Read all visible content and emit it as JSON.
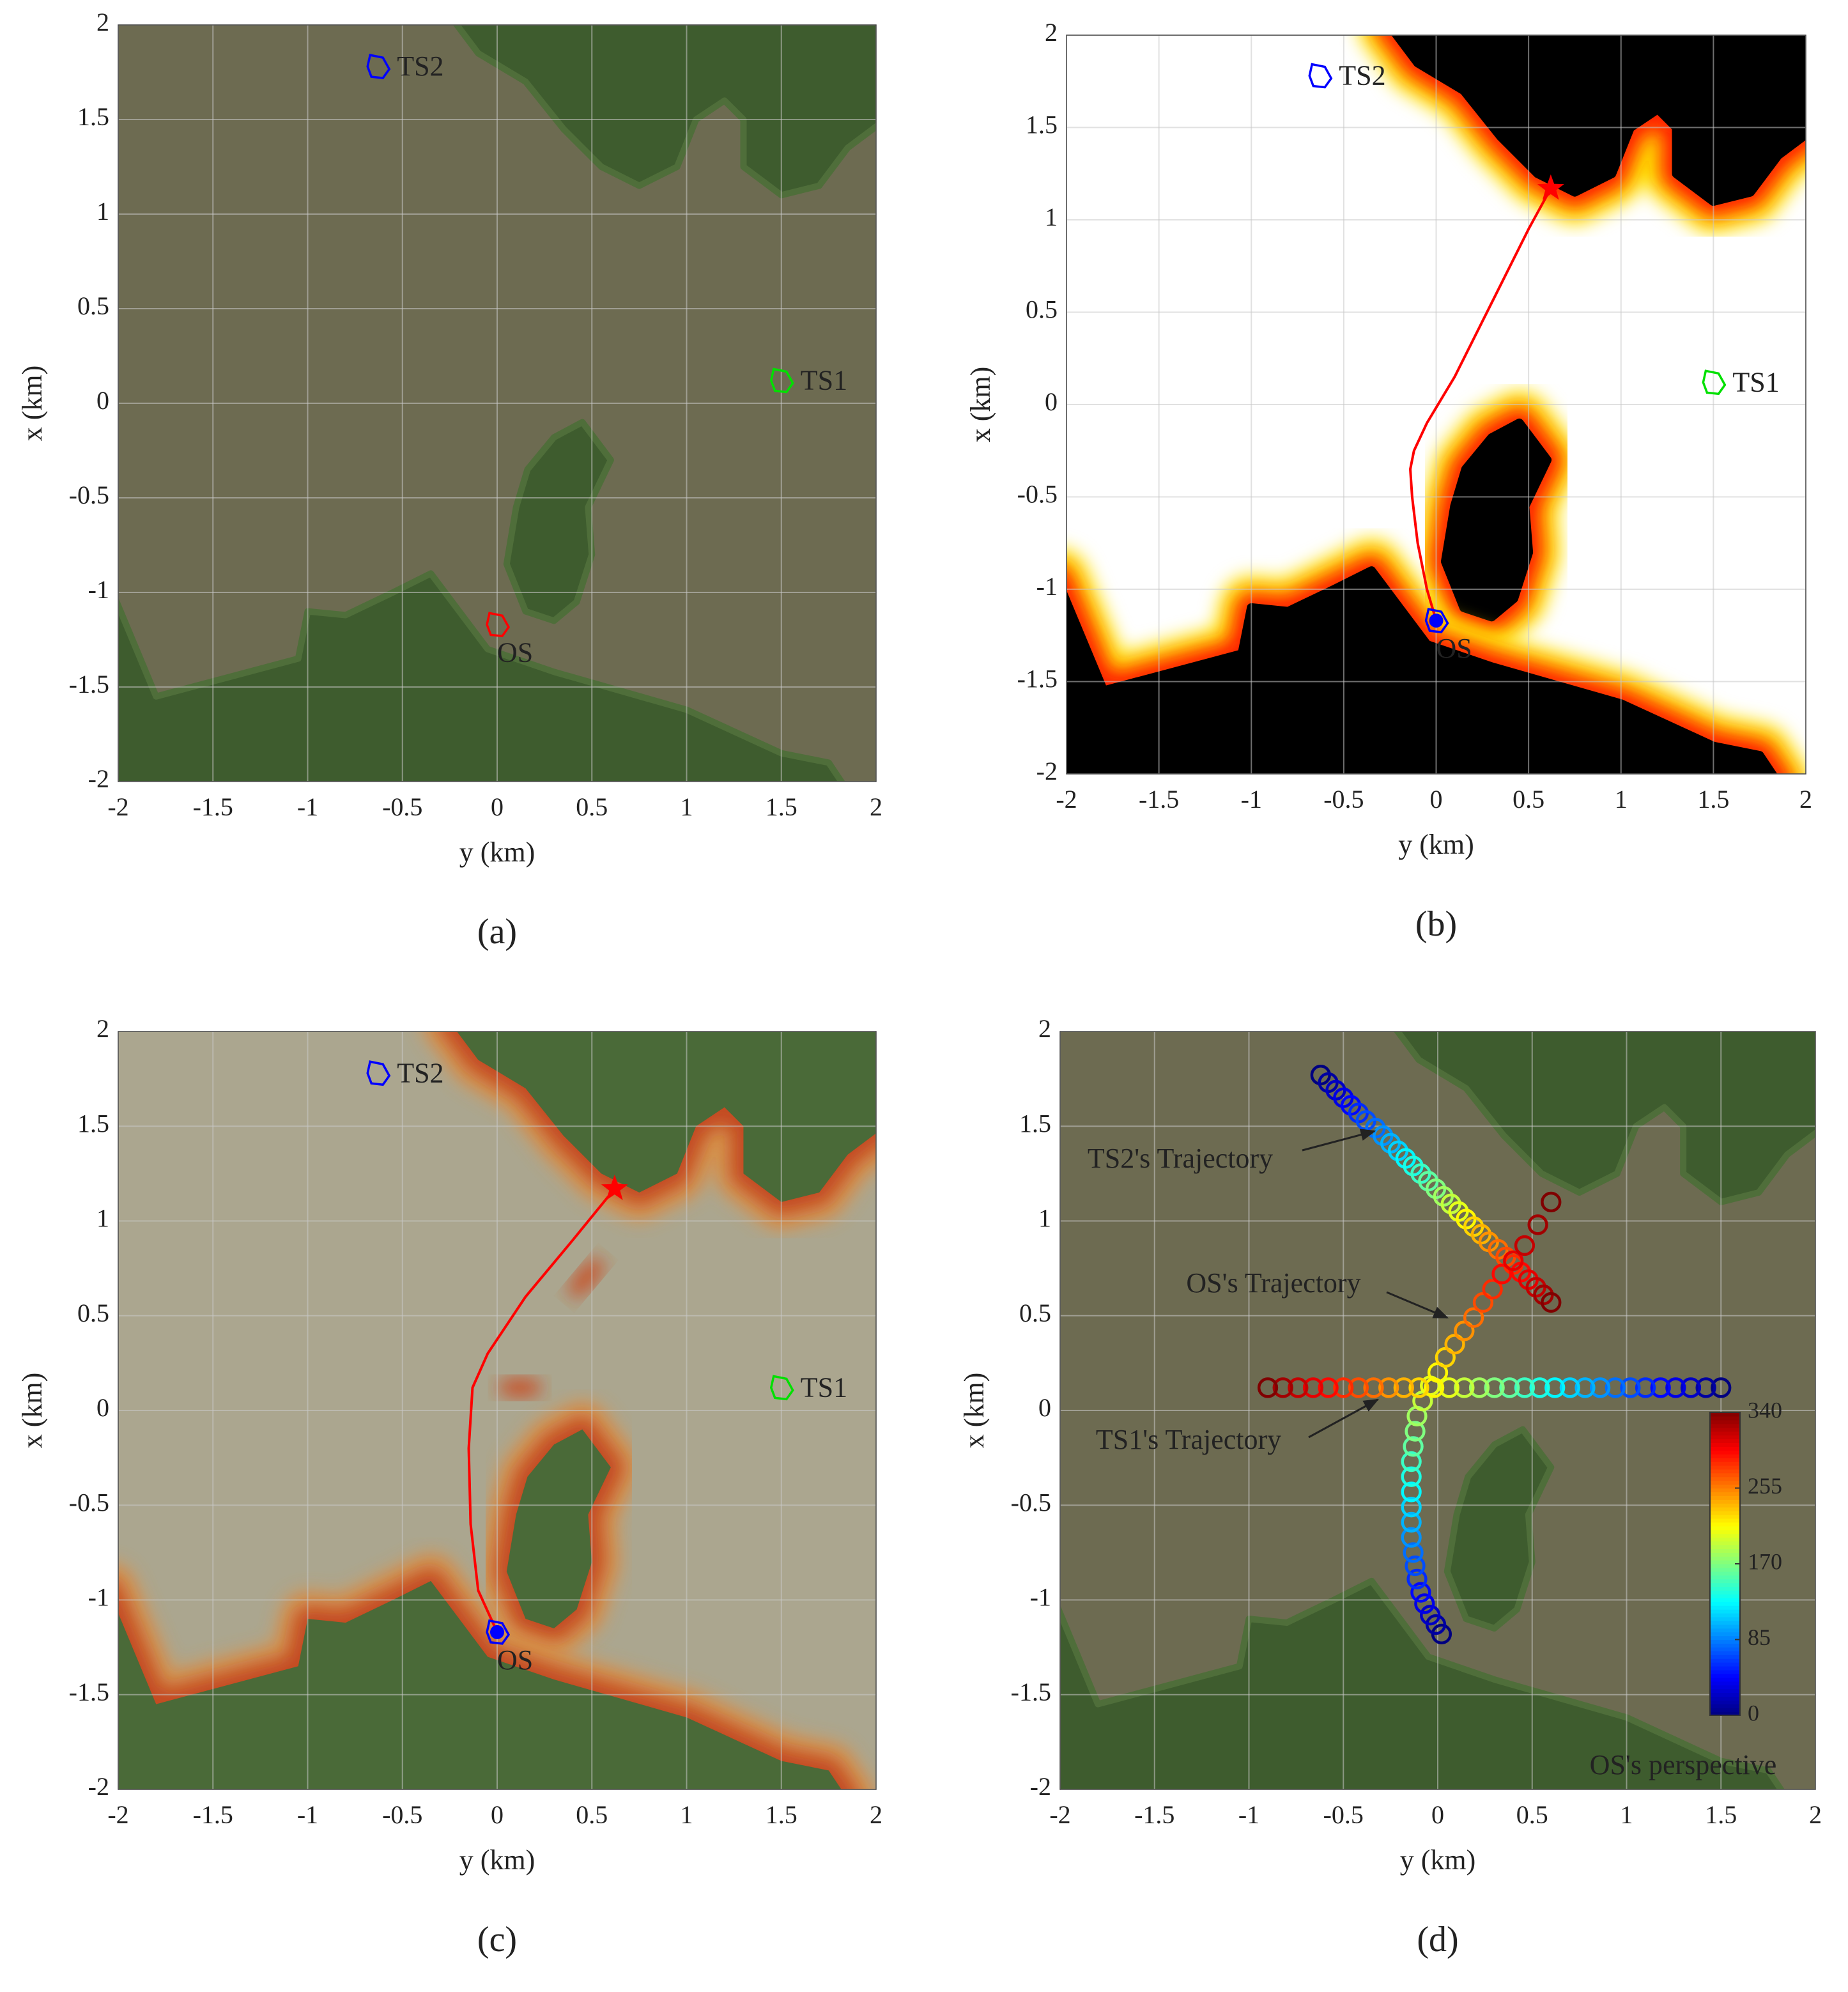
{
  "chart_data": [
    {
      "type": "map",
      "panel": "(a)",
      "background": "satellite",
      "xlabel": "y (km)",
      "ylabel": "x (km)",
      "xlim": [
        -2,
        2
      ],
      "ylim": [
        -2,
        2
      ],
      "xticks": [
        -2,
        -1.5,
        -1,
        -0.5,
        0,
        0.5,
        1,
        1.5,
        2
      ],
      "yticks": [
        -2,
        -1.5,
        -1,
        -0.5,
        0,
        0.5,
        1,
        1.5,
        2
      ],
      "grid": true,
      "ships": [
        {
          "name": "TS2",
          "x": -0.63,
          "y": 1.78,
          "color": "#0000ff",
          "filled": false
        },
        {
          "name": "TS1",
          "x": 1.5,
          "y": 0.12,
          "color": "#00e000",
          "filled": false
        },
        {
          "name": "OS",
          "x": 0,
          "y": -1.17,
          "color": "#ff0000",
          "filled": false
        }
      ]
    },
    {
      "type": "map",
      "panel": "(b)",
      "background": "risk-binary",
      "xlabel": "y (km)",
      "ylabel": "x (km)",
      "xlim": [
        -2,
        2
      ],
      "ylim": [
        -2,
        2
      ],
      "xticks": [
        -2,
        -1.5,
        -1,
        -0.5,
        0,
        0.5,
        1,
        1.5,
        2
      ],
      "yticks": [
        -2,
        -1.5,
        -1,
        -0.5,
        0,
        0.5,
        1,
        1.5,
        2
      ],
      "grid": true,
      "ships": [
        {
          "name": "TS2",
          "x": -0.63,
          "y": 1.78,
          "color": "#0000ff",
          "filled": false
        },
        {
          "name": "TS1",
          "x": 1.5,
          "y": 0.12,
          "color": "#00e000",
          "filled": false
        },
        {
          "name": "OS",
          "x": 0,
          "y": -1.17,
          "color": "#0000ff",
          "filled": true
        }
      ],
      "path": {
        "color": "#ff0000",
        "x": [
          0,
          -0.05,
          -0.1,
          -0.13,
          -0.14,
          -0.12,
          -0.05,
          0.1,
          0.3,
          0.5,
          0.62
        ],
        "y": [
          -1.17,
          -1.0,
          -0.75,
          -0.5,
          -0.35,
          -0.25,
          -0.1,
          0.15,
          0.55,
          0.95,
          1.17
        ]
      },
      "goal": {
        "x": 0.62,
        "y": 1.17,
        "color": "#ff0000"
      }
    },
    {
      "type": "map",
      "panel": "(c)",
      "background": "risk-overlay",
      "xlabel": "y (km)",
      "ylabel": "x (km)",
      "xlim": [
        -2,
        2
      ],
      "ylim": [
        -2,
        2
      ],
      "xticks": [
        -2,
        -1.5,
        -1,
        -0.5,
        0,
        0.5,
        1,
        1.5,
        2
      ],
      "yticks": [
        -2,
        -1.5,
        -1,
        -0.5,
        0,
        0.5,
        1,
        1.5,
        2
      ],
      "grid": true,
      "ships": [
        {
          "name": "TS2",
          "x": -0.63,
          "y": 1.78,
          "color": "#0000ff",
          "filled": false
        },
        {
          "name": "TS1",
          "x": 1.5,
          "y": 0.12,
          "color": "#00e000",
          "filled": false
        },
        {
          "name": "OS",
          "x": 0,
          "y": -1.17,
          "color": "#0000ff",
          "filled": true
        }
      ],
      "path": {
        "color": "#ff0000",
        "x": [
          0,
          -0.1,
          -0.14,
          -0.15,
          -0.13,
          -0.05,
          0.15,
          0.4,
          0.62
        ],
        "y": [
          -1.17,
          -0.95,
          -0.6,
          -0.2,
          0.12,
          0.3,
          0.6,
          0.9,
          1.17
        ]
      },
      "goal": {
        "x": 0.62,
        "y": 1.17,
        "color": "#ff0000"
      }
    },
    {
      "type": "trajectory",
      "panel": "(d)",
      "background": "satellite",
      "xlabel": "y (km)",
      "ylabel": "x (km)",
      "xlim": [
        -2,
        2
      ],
      "ylim": [
        -2,
        2
      ],
      "xticks": [
        -2,
        -1.5,
        -1,
        -0.5,
        0,
        0.5,
        1,
        1.5,
        2
      ],
      "yticks": [
        -2,
        -1.5,
        -1,
        -0.5,
        0,
        0.5,
        1,
        1.5,
        2
      ],
      "grid": true,
      "series": [
        {
          "name": "TS2's Trajectory",
          "x": [
            -0.62,
            -0.58,
            -0.54,
            -0.5,
            -0.46,
            -0.42,
            -0.38,
            -0.33,
            -0.29,
            -0.25,
            -0.21,
            -0.17,
            -0.13,
            -0.09,
            -0.05,
            -0.01,
            0.03,
            0.07,
            0.11,
            0.15,
            0.19,
            0.23,
            0.27,
            0.32,
            0.36,
            0.4,
            0.44,
            0.48,
            0.52,
            0.56,
            0.6
          ],
          "y": [
            1.77,
            1.73,
            1.69,
            1.65,
            1.61,
            1.57,
            1.53,
            1.49,
            1.45,
            1.41,
            1.37,
            1.33,
            1.29,
            1.25,
            1.21,
            1.17,
            1.13,
            1.09,
            1.05,
            1.01,
            0.97,
            0.93,
            0.89,
            0.85,
            0.81,
            0.77,
            0.73,
            0.69,
            0.65,
            0.61,
            0.57
          ],
          "values": [
            0,
            11,
            23,
            34,
            45,
            57,
            68,
            79,
            91,
            102,
            113,
            125,
            136,
            147,
            159,
            170,
            181,
            193,
            204,
            215,
            227,
            238,
            249,
            261,
            272,
            283,
            295,
            306,
            317,
            329,
            340
          ]
        },
        {
          "name": "OS's Trajectory",
          "x": [
            0.02,
            -0.01,
            -0.04,
            -0.07,
            -0.09,
            -0.11,
            -0.12,
            -0.13,
            -0.14,
            -0.14,
            -0.14,
            -0.14,
            -0.14,
            -0.14,
            -0.13,
            -0.12,
            -0.11,
            -0.08,
            -0.04,
            0,
            0.04,
            0.09,
            0.14,
            0.19,
            0.24,
            0.29,
            0.34,
            0.4,
            0.46,
            0.53,
            0.6
          ],
          "y": [
            -1.18,
            -1.13,
            -1.08,
            -1.02,
            -0.96,
            -0.89,
            -0.82,
            -0.75,
            -0.67,
            -0.59,
            -0.51,
            -0.43,
            -0.35,
            -0.27,
            -0.19,
            -0.11,
            -0.03,
            0.05,
            0.13,
            0.2,
            0.28,
            0.35,
            0.42,
            0.49,
            0.57,
            0.64,
            0.72,
            0.79,
            0.87,
            0.98,
            1.1
          ],
          "values": [
            0,
            11,
            23,
            34,
            45,
            57,
            68,
            79,
            91,
            102,
            113,
            125,
            136,
            147,
            159,
            170,
            181,
            193,
            204,
            215,
            227,
            238,
            249,
            261,
            272,
            283,
            295,
            306,
            317,
            329,
            340
          ]
        },
        {
          "name": "TS1's Trajectory",
          "x": [
            1.5,
            1.42,
            1.34,
            1.26,
            1.18,
            1.1,
            1.02,
            0.94,
            0.86,
            0.78,
            0.7,
            0.62,
            0.54,
            0.46,
            0.38,
            0.3,
            0.22,
            0.14,
            0.06,
            -0.02,
            -0.1,
            -0.18,
            -0.26,
            -0.34,
            -0.42,
            -0.5,
            -0.58,
            -0.66,
            -0.74,
            -0.82,
            -0.9
          ],
          "y": [
            0.12,
            0.12,
            0.12,
            0.12,
            0.12,
            0.12,
            0.12,
            0.12,
            0.12,
            0.12,
            0.12,
            0.12,
            0.12,
            0.12,
            0.12,
            0.12,
            0.12,
            0.12,
            0.12,
            0.12,
            0.12,
            0.12,
            0.12,
            0.12,
            0.12,
            0.12,
            0.12,
            0.12,
            0.12,
            0.12,
            0.12
          ],
          "values": [
            0,
            11,
            23,
            34,
            45,
            57,
            68,
            79,
            91,
            102,
            113,
            125,
            136,
            147,
            159,
            170,
            181,
            193,
            204,
            215,
            227,
            238,
            249,
            261,
            272,
            283,
            295,
            306,
            317,
            329,
            340
          ]
        }
      ],
      "colorbar": {
        "lim": [
          0,
          340
        ],
        "ticks": [
          0,
          85,
          170,
          255,
          340
        ],
        "label": "OS's perspective"
      }
    }
  ]
}
